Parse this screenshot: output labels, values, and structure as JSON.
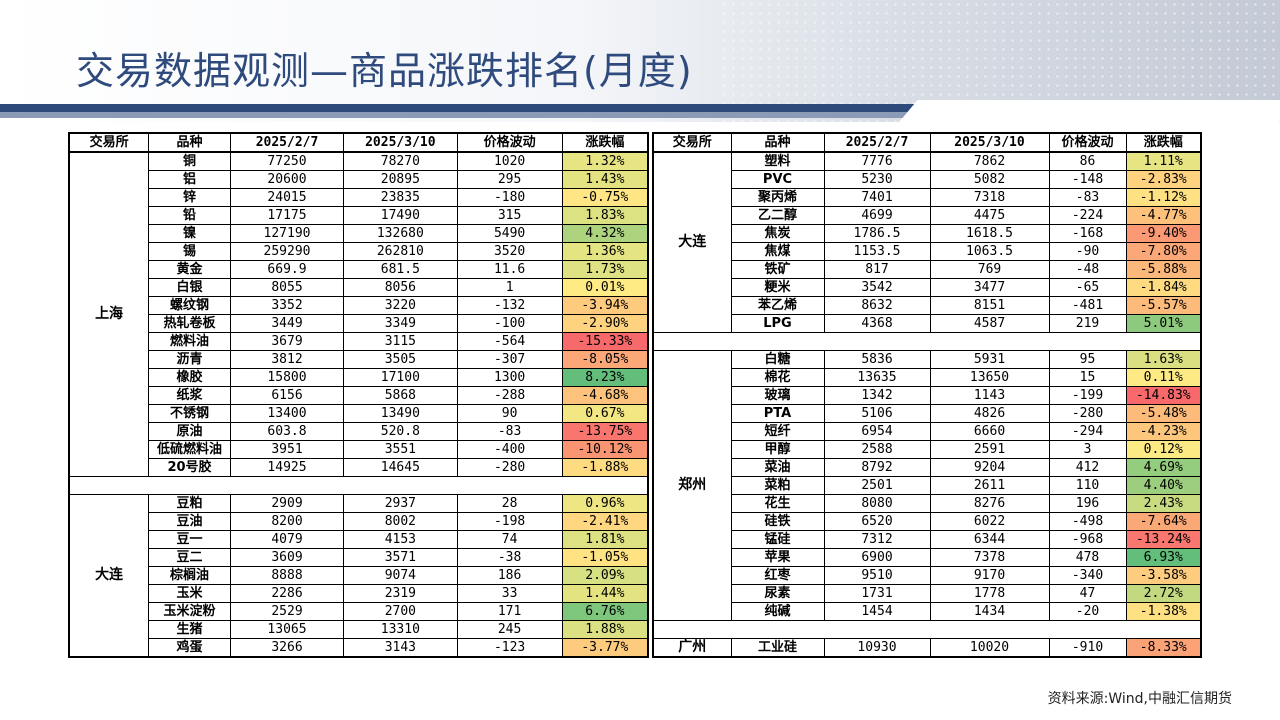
{
  "title": "交易数据观测—商品涨跌排名(月度)",
  "headers": [
    "交易所",
    "品种",
    "2025/2/7",
    "2025/3/10",
    "价格波动",
    "涨跌幅"
  ],
  "source": "资料来源:Wind,中融汇信期货",
  "left": [
    {
      "exchange": "上海",
      "rows": [
        [
          "铜",
          "77250",
          "78270",
          "1020",
          "1.32%"
        ],
        [
          "铝",
          "20600",
          "20895",
          "295",
          "1.43%"
        ],
        [
          "锌",
          "24015",
          "23835",
          "-180",
          "-0.75%"
        ],
        [
          "铅",
          "17175",
          "17490",
          "315",
          "1.83%"
        ],
        [
          "镍",
          "127190",
          "132680",
          "5490",
          "4.32%"
        ],
        [
          "锡",
          "259290",
          "262810",
          "3520",
          "1.36%"
        ],
        [
          "黄金",
          "669.9",
          "681.5",
          "11.6",
          "1.73%"
        ],
        [
          "白银",
          "8055",
          "8056",
          "1",
          "0.01%"
        ],
        [
          "螺纹钢",
          "3352",
          "3220",
          "-132",
          "-3.94%"
        ],
        [
          "热轧卷板",
          "3449",
          "3349",
          "-100",
          "-2.90%"
        ],
        [
          "燃料油",
          "3679",
          "3115",
          "-564",
          "-15.33%"
        ],
        [
          "沥青",
          "3812",
          "3505",
          "-307",
          "-8.05%"
        ],
        [
          "橡胶",
          "15800",
          "17100",
          "1300",
          "8.23%"
        ],
        [
          "纸浆",
          "6156",
          "5868",
          "-288",
          "-4.68%"
        ],
        [
          "不锈钢",
          "13400",
          "13490",
          "90",
          "0.67%"
        ],
        [
          "原油",
          "603.8",
          "520.8",
          "-83",
          "-13.75%"
        ],
        [
          "低硫燃料油",
          "3951",
          "3551",
          "-400",
          "-10.12%"
        ],
        [
          "20号胶",
          "14925",
          "14645",
          "-280",
          "-1.88%"
        ]
      ]
    },
    {
      "exchange": "大连",
      "rows": [
        [
          "豆粕",
          "2909",
          "2937",
          "28",
          "0.96%"
        ],
        [
          "豆油",
          "8200",
          "8002",
          "-198",
          "-2.41%"
        ],
        [
          "豆一",
          "4079",
          "4153",
          "74",
          "1.81%"
        ],
        [
          "豆二",
          "3609",
          "3571",
          "-38",
          "-1.05%"
        ],
        [
          "棕榈油",
          "8888",
          "9074",
          "186",
          "2.09%"
        ],
        [
          "玉米",
          "2286",
          "2319",
          "33",
          "1.44%"
        ],
        [
          "玉米淀粉",
          "2529",
          "2700",
          "171",
          "6.76%"
        ],
        [
          "生猪",
          "13065",
          "13310",
          "245",
          "1.88%"
        ],
        [
          "鸡蛋",
          "3266",
          "3143",
          "-123",
          "-3.77%"
        ]
      ]
    }
  ],
  "right": [
    {
      "exchange": "大连",
      "rows": [
        [
          "塑料",
          "7776",
          "7862",
          "86",
          "1.11%"
        ],
        [
          "PVC",
          "5230",
          "5082",
          "-148",
          "-2.83%"
        ],
        [
          "聚丙烯",
          "7401",
          "7318",
          "-83",
          "-1.12%"
        ],
        [
          "乙二醇",
          "4699",
          "4475",
          "-224",
          "-4.77%"
        ],
        [
          "焦炭",
          "1786.5",
          "1618.5",
          "-168",
          "-9.40%"
        ],
        [
          "焦煤",
          "1153.5",
          "1063.5",
          "-90",
          "-7.80%"
        ],
        [
          "铁矿",
          "817",
          "769",
          "-48",
          "-5.88%"
        ],
        [
          "粳米",
          "3542",
          "3477",
          "-65",
          "-1.84%"
        ],
        [
          "苯乙烯",
          "8632",
          "8151",
          "-481",
          "-5.57%"
        ],
        [
          "LPG",
          "4368",
          "4587",
          "219",
          "5.01%"
        ]
      ]
    },
    {
      "exchange": "郑州",
      "rows": [
        [
          "白糖",
          "5836",
          "5931",
          "95",
          "1.63%"
        ],
        [
          "棉花",
          "13635",
          "13650",
          "15",
          "0.11%"
        ],
        [
          "玻璃",
          "1342",
          "1143",
          "-199",
          "-14.83%"
        ],
        [
          "PTA",
          "5106",
          "4826",
          "-280",
          "-5.48%"
        ],
        [
          "短纤",
          "6954",
          "6660",
          "-294",
          "-4.23%"
        ],
        [
          "甲醇",
          "2588",
          "2591",
          "3",
          "0.12%"
        ],
        [
          "菜油",
          "8792",
          "9204",
          "412",
          "4.69%"
        ],
        [
          "菜粕",
          "2501",
          "2611",
          "110",
          "4.40%"
        ],
        [
          "花生",
          "8080",
          "8276",
          "196",
          "2.43%"
        ],
        [
          "硅铁",
          "6520",
          "6022",
          "-498",
          "-7.64%"
        ],
        [
          "锰硅",
          "7312",
          "6344",
          "-968",
          "-13.24%"
        ],
        [
          "苹果",
          "6900",
          "7378",
          "478",
          "6.93%"
        ],
        [
          "红枣",
          "9510",
          "9170",
          "-340",
          "-3.58%"
        ],
        [
          "尿素",
          "1731",
          "1778",
          "47",
          "2.72%"
        ],
        [
          "纯碱",
          "1454",
          "1434",
          "-20",
          "-1.38%"
        ]
      ]
    },
    {
      "exchange": "广州",
      "rows": [
        [
          "工业硅",
          "10930",
          "10020",
          "-910",
          "-8.33%"
        ]
      ]
    }
  ],
  "colors": {
    "accent": "#2f4a7d",
    "scale_low": "#f8696b",
    "scale_mid": "#ffeb84",
    "scale_high": "#63be7b"
  }
}
